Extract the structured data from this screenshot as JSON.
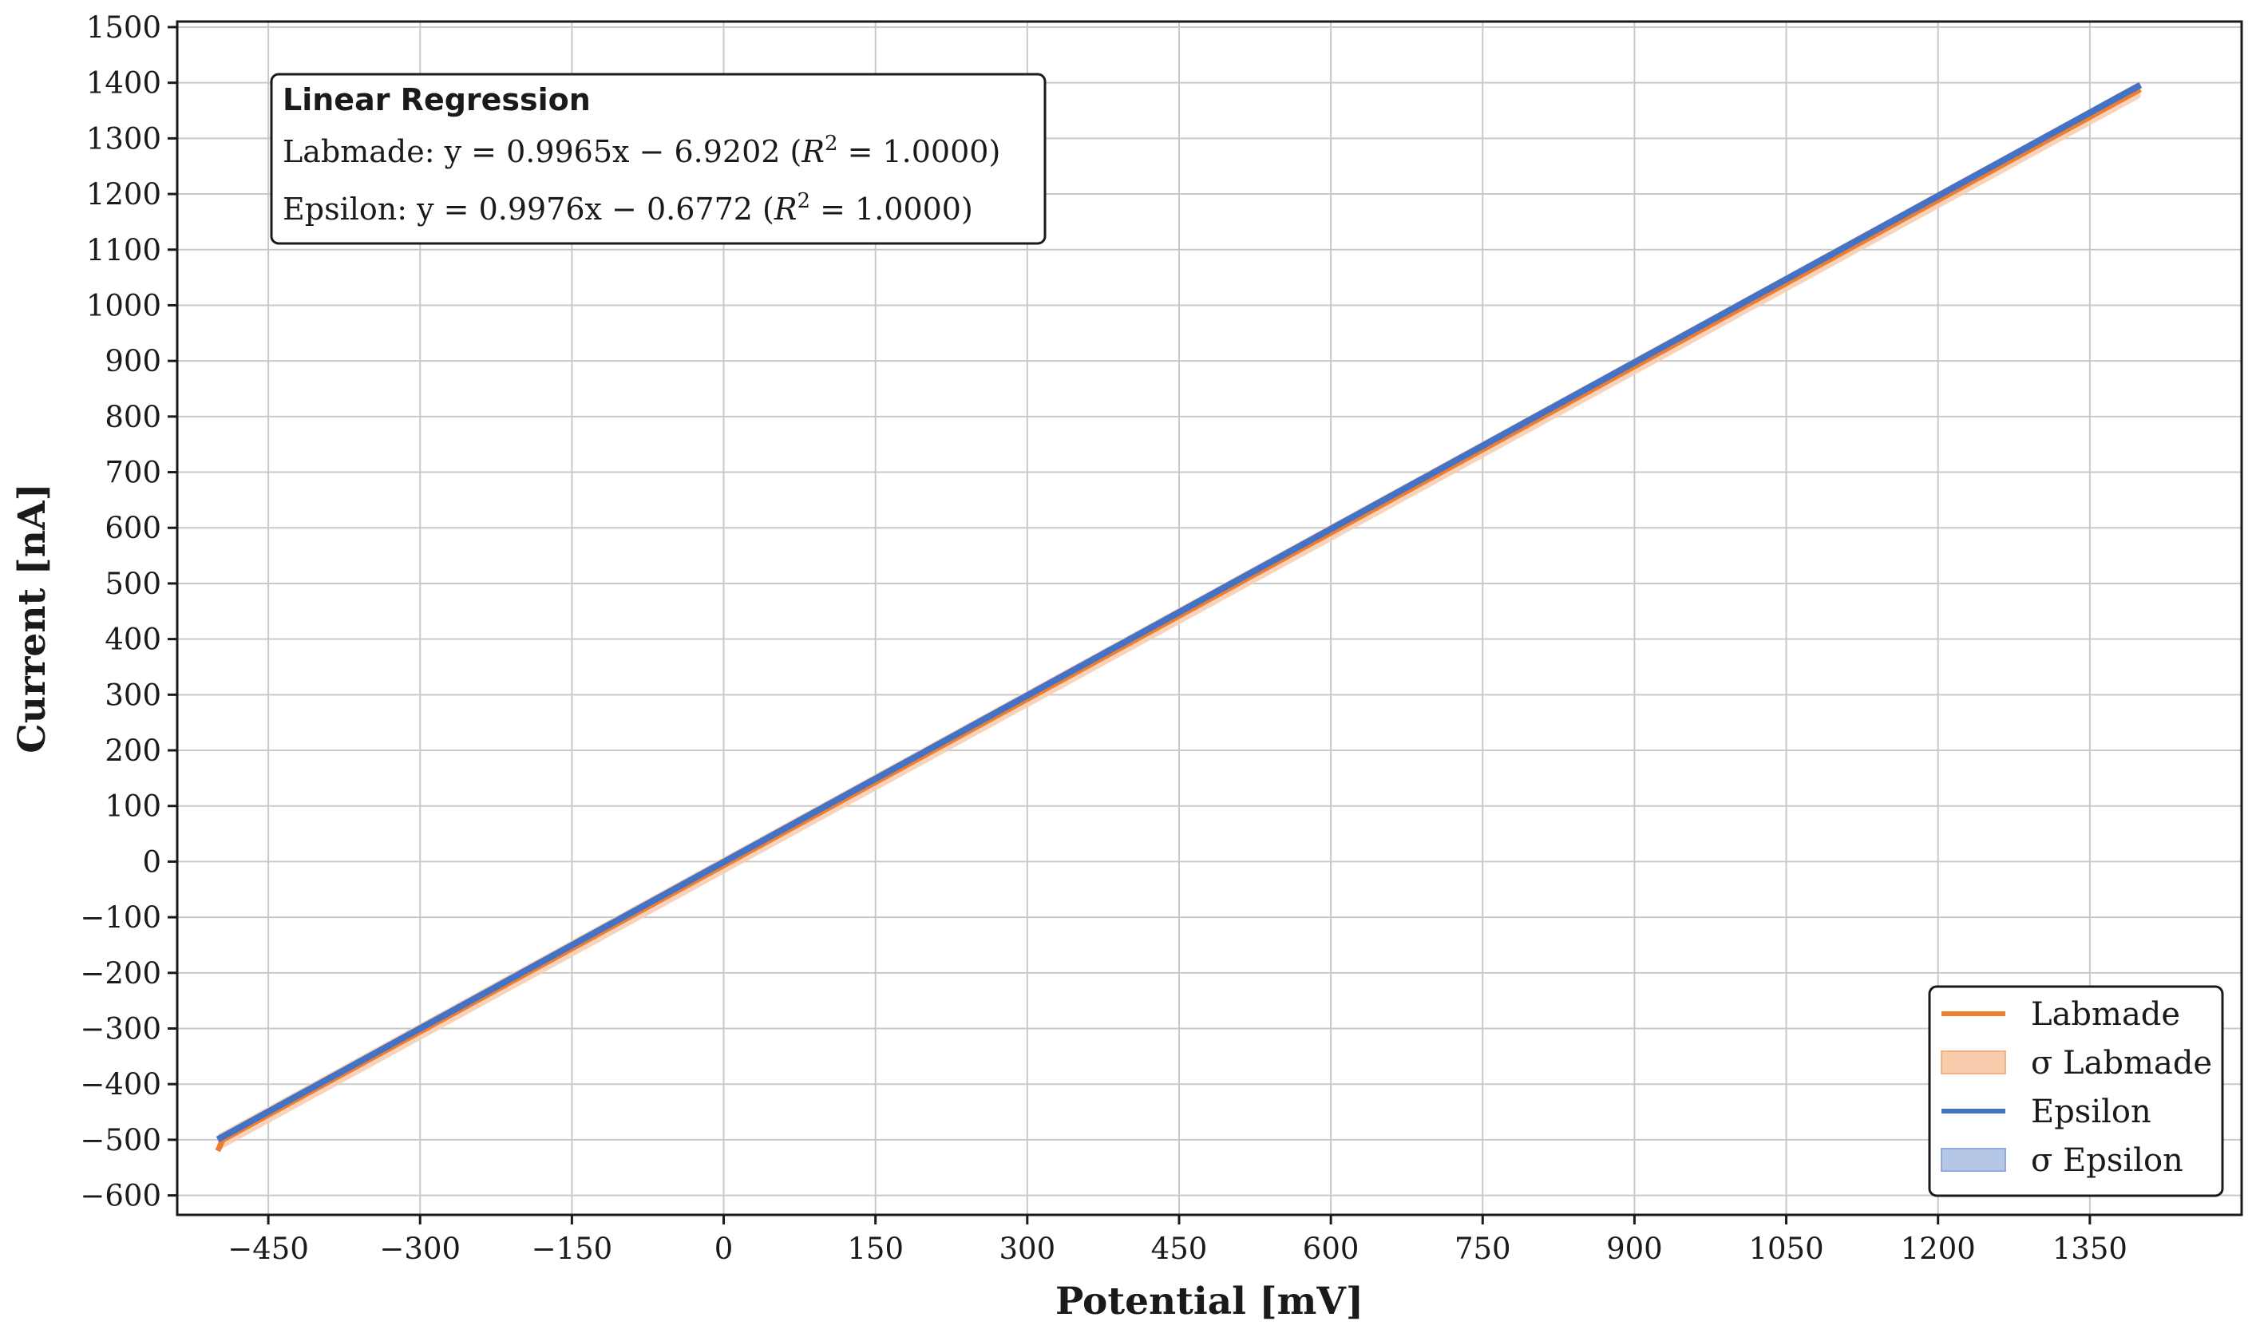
{
  "chart_data": {
    "type": "line",
    "xlabel": "Potential [mV]",
    "ylabel": "Current [nA]",
    "xlim": [
      -540,
      1500
    ],
    "ylim": [
      -635,
      1510
    ],
    "xticks": [
      -450,
      -300,
      -150,
      0,
      150,
      300,
      450,
      600,
      750,
      900,
      1050,
      1200,
      1350
    ],
    "yticks": [
      -600,
      -500,
      -400,
      -300,
      -200,
      -100,
      0,
      100,
      200,
      300,
      400,
      500,
      600,
      700,
      800,
      900,
      1000,
      1100,
      1200,
      1300,
      1400,
      1500
    ],
    "grid": true,
    "legend_placement": "lower-right",
    "legend": [
      "Labmade",
      "σ Labmade",
      "Epsilon",
      "σ Epsilon"
    ],
    "annotation": {
      "title": "Linear Regression",
      "lines": [
        {
          "prefix": "Labmade: y = 0.9965x − 6.9202 (",
          "r": "R",
          "exp": "2",
          "suffix": " = 1.0000)"
        },
        {
          "prefix": "Epsilon: y = 0.9976x − 0.6772 (",
          "r": "R",
          "exp": "2",
          "suffix": " = 1.0000)"
        }
      ]
    },
    "series": [
      {
        "name": "Labmade",
        "color": "#ed7d31",
        "x_range": [
          -500,
          1400
        ],
        "slope": 0.9965,
        "intercept": -6.9202,
        "sigma": 15,
        "start_point": [
          -500,
          -520
        ]
      },
      {
        "name": "Epsilon",
        "color": "#4472c4",
        "x_range": [
          -500,
          1400
        ],
        "slope": 0.9976,
        "intercept": -0.6772,
        "sigma": 3
      }
    ],
    "band_colors": {
      "labmade": "#f8cbad",
      "epsilon": "#b4c7e7"
    }
  }
}
